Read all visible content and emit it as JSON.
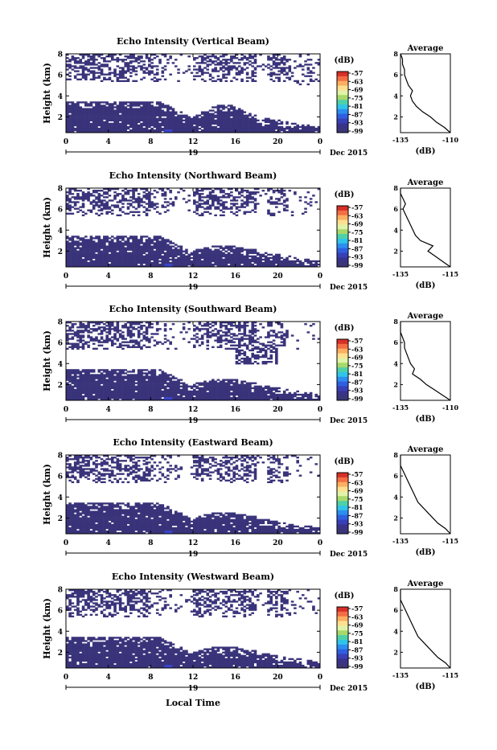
{
  "colorbar_unit": "(dB)",
  "colorbar_ticks": [
    "-57",
    "-63",
    "-69",
    "-75",
    "-81",
    "-87",
    "-93",
    "-99"
  ],
  "colorbar_colors": [
    "#d73027",
    "#f46d43",
    "#fdae61",
    "#fee090",
    "#e0f3a8",
    "#a6d96a",
    "#4fd1a8",
    "#30c5e8",
    "#2c8ef0",
    "#2f5fe0",
    "#3840b8",
    "#39338a",
    "#3a3678"
  ],
  "echo_color": "#39337a",
  "x_tick_labels": [
    "0",
    "4",
    "8",
    "12",
    "16",
    "20",
    "0"
  ],
  "day_label": "19",
  "month_label": "Dec 2015",
  "xlabel": "Local Time",
  "ylabel": "Height (km)",
  "y_tick_labels": [
    "2",
    "4",
    "6",
    "8"
  ],
  "avg_title": "Average",
  "avg_xlabel": "(dB)",
  "chart_data": [
    {
      "type": "heatmap",
      "title": "Echo Intensity (Vertical Beam)",
      "xlabel": "",
      "ylabel": "Height (km)",
      "x_range_hours": [
        0,
        24
      ],
      "y_range_km": [
        0.5,
        8
      ],
      "avg_profile": {
        "type": "line",
        "title": "Average",
        "xlabel": "(dB)",
        "x_ticks": [
          "-135",
          "-110"
        ],
        "xlim": [
          -135,
          -110
        ],
        "ylim": [
          0.5,
          8
        ],
        "x": [
          -110,
          -113,
          -117,
          -120,
          -124,
          -127,
          -129,
          -130,
          -129,
          -131,
          -132,
          -133,
          -133,
          -134,
          -134,
          -135,
          -135
        ],
        "y": [
          0.5,
          1.0,
          1.5,
          2.0,
          2.5,
          3.0,
          3.5,
          4.0,
          4.5,
          5.0,
          5.5,
          6.0,
          6.5,
          7.0,
          7.5,
          8.0,
          8.0
        ]
      }
    },
    {
      "type": "heatmap",
      "title": "Echo Intensity (Northward Beam)",
      "xlabel": "",
      "ylabel": "Height (km)",
      "x_range_hours": [
        0,
        24
      ],
      "y_range_km": [
        0.5,
        8
      ],
      "avg_profile": {
        "type": "line",
        "title": "Average",
        "xlabel": "(dB)",
        "x_ticks": [
          "-135",
          "-115"
        ],
        "xlim": [
          -135,
          -115
        ],
        "ylim": [
          0.5,
          8
        ],
        "x": [
          -115,
          -118,
          -121,
          -124,
          -122,
          -127,
          -129,
          -130,
          -131,
          -132,
          -133,
          -134,
          -133,
          -134,
          -135,
          -135
        ],
        "y": [
          0.5,
          1.0,
          1.5,
          2.0,
          2.5,
          3.0,
          3.5,
          4.0,
          4.5,
          5.0,
          5.5,
          6.0,
          6.5,
          7.0,
          7.5,
          8.0
        ]
      }
    },
    {
      "type": "heatmap",
      "title": "Echo Intensity (Southward Beam)",
      "xlabel": "",
      "ylabel": "Height (km)",
      "x_range_hours": [
        0,
        24
      ],
      "y_range_km": [
        0.5,
        8
      ],
      "avg_profile": {
        "type": "line",
        "title": "Average",
        "xlabel": "(dB)",
        "x_ticks": [
          "-135",
          "-110"
        ],
        "xlim": [
          -135,
          -110
        ],
        "ylim": [
          0.5,
          8
        ],
        "x": [
          -110,
          -114,
          -118,
          -122,
          -125,
          -129,
          -128,
          -130,
          -131,
          -132,
          -133,
          -133,
          -134,
          -135,
          -135
        ],
        "y": [
          0.5,
          1.0,
          1.5,
          2.0,
          2.5,
          3.0,
          3.5,
          4.0,
          4.5,
          5.0,
          5.5,
          6.0,
          6.5,
          7.0,
          8.0
        ]
      }
    },
    {
      "type": "heatmap",
      "title": "Echo Intensity (Eastward Beam)",
      "xlabel": "",
      "ylabel": "Height (km)",
      "x_range_hours": [
        0,
        24
      ],
      "y_range_km": [
        0.5,
        8
      ],
      "avg_profile": {
        "type": "line",
        "title": "Average",
        "xlabel": "(dB)",
        "x_ticks": [
          "-135",
          "-115"
        ],
        "xlim": [
          -135,
          -115
        ],
        "ylim": [
          0.5,
          8
        ],
        "x": [
          -115,
          -117,
          -120,
          -122,
          -124,
          -126,
          -128,
          -129,
          -130,
          -131,
          -132,
          -133,
          -134,
          -135,
          -135
        ],
        "y": [
          0.5,
          1.0,
          1.5,
          2.0,
          2.5,
          3.0,
          3.5,
          4.0,
          4.5,
          5.0,
          5.5,
          6.0,
          6.5,
          7.0,
          8.0
        ]
      }
    },
    {
      "type": "heatmap",
      "title": "Echo Intensity (Westward Beam)",
      "xlabel": "Local Time",
      "ylabel": "Height (km)",
      "x_range_hours": [
        0,
        24
      ],
      "y_range_km": [
        0.5,
        8
      ],
      "avg_profile": {
        "type": "line",
        "title": "Average",
        "xlabel": "(dB)",
        "x_ticks": [
          "-135",
          "-115"
        ],
        "xlim": [
          -135,
          -115
        ],
        "ylim": [
          0.5,
          8
        ],
        "x": [
          -115,
          -117,
          -120,
          -122,
          -124,
          -126,
          -128,
          -129,
          -130,
          -131,
          -132,
          -133,
          -134,
          -135,
          -135
        ],
        "y": [
          0.5,
          1.0,
          1.5,
          2.0,
          2.5,
          3.0,
          3.5,
          4.0,
          4.5,
          5.0,
          5.5,
          6.0,
          6.5,
          7.0,
          8.0
        ]
      }
    }
  ]
}
